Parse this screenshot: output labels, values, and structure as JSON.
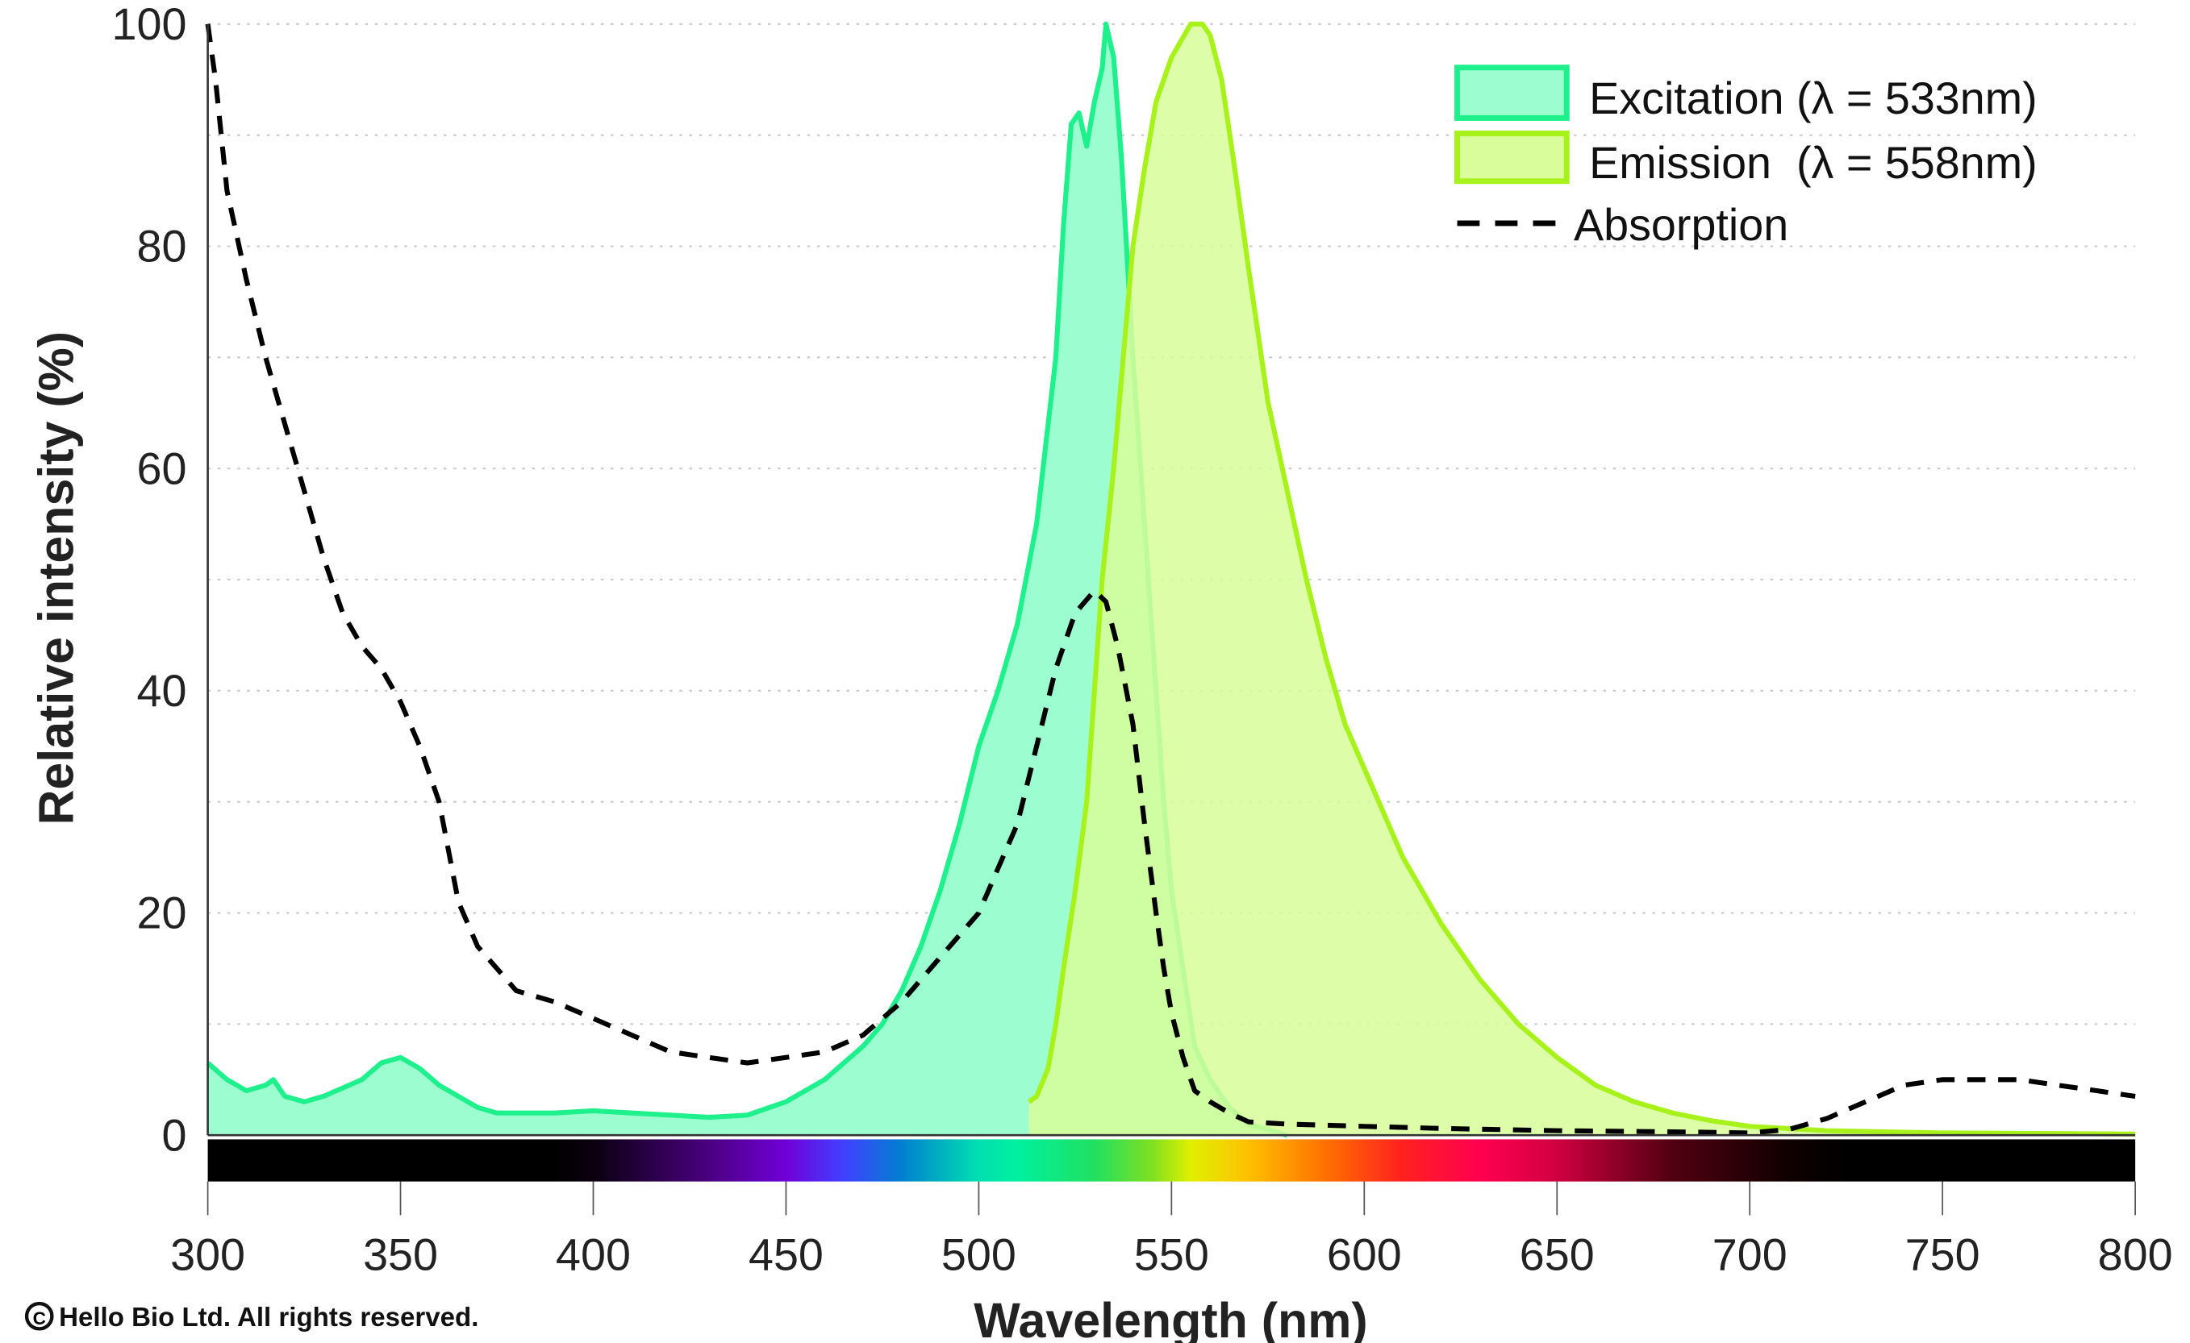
{
  "chart_data": {
    "type": "area",
    "xlabel": "Wavelength (nm)",
    "ylabel": "Relative intensity (%)",
    "xlim": [
      300,
      800
    ],
    "ylim": [
      0,
      100
    ],
    "xticks": [
      300,
      350,
      400,
      450,
      500,
      550,
      600,
      650,
      700,
      750,
      800
    ],
    "yticks": [
      0,
      20,
      40,
      60,
      80,
      100
    ],
    "grid": "horizontal dotted every 10",
    "legend_position": "top-right",
    "spectrum_bar": true,
    "series": [
      {
        "name": "Excitation (λ = 533nm)",
        "style": "filled",
        "color": "#1ef08c",
        "fill": "#9cfdd0",
        "x": [
          300,
          305,
          310,
          315,
          317,
          320,
          325,
          330,
          340,
          345,
          350,
          355,
          360,
          365,
          370,
          375,
          380,
          390,
          400,
          410,
          420,
          430,
          440,
          450,
          460,
          470,
          475,
          480,
          485,
          490,
          495,
          500,
          505,
          510,
          515,
          520,
          522,
          524,
          526,
          528,
          530,
          532,
          533,
          535,
          537,
          540,
          543,
          546,
          548,
          550,
          553,
          556,
          560,
          565,
          570,
          575,
          580
        ],
        "y": [
          6.5,
          5,
          4,
          4.5,
          5,
          3.5,
          3,
          3.5,
          5,
          6.5,
          7,
          6,
          4.5,
          3.5,
          2.5,
          2,
          2,
          2,
          2.2,
          2,
          1.8,
          1.6,
          1.8,
          3,
          5,
          8,
          10,
          13,
          17,
          22,
          28,
          35,
          40,
          46,
          55,
          70,
          82,
          91,
          92,
          89,
          93,
          96,
          100,
          97,
          88,
          70,
          55,
          40,
          30,
          22,
          15,
          8,
          5,
          2.5,
          1,
          0.5,
          0
        ]
      },
      {
        "name": "Emission  (λ = 558nm)",
        "style": "filled",
        "color": "#a6f21a",
        "fill": "#d8fd9a",
        "x": [
          513,
          515,
          518,
          520,
          522,
          525,
          528,
          530,
          532,
          535,
          538,
          540,
          543,
          546,
          550,
          555,
          558,
          560,
          563,
          566,
          570,
          575,
          580,
          585,
          590,
          595,
          600,
          610,
          620,
          630,
          640,
          650,
          660,
          670,
          680,
          690,
          700,
          720,
          750,
          800
        ],
        "y": [
          3,
          3.5,
          6,
          10,
          15,
          22,
          30,
          40,
          50,
          60,
          72,
          80,
          87,
          93,
          97,
          100,
          100,
          99,
          95,
          88,
          78,
          66,
          58,
          50,
          43,
          37,
          33,
          25,
          19,
          14,
          10,
          7,
          4.5,
          3,
          2,
          1.3,
          0.8,
          0.4,
          0.2,
          0.1
        ]
      },
      {
        "name": "Absorption",
        "style": "dashed",
        "color": "#000000",
        "x": [
          300,
          302,
          305,
          310,
          315,
          320,
          325,
          330,
          335,
          340,
          345,
          350,
          355,
          360,
          365,
          370,
          380,
          390,
          400,
          410,
          420,
          430,
          440,
          450,
          460,
          470,
          480,
          490,
          500,
          505,
          510,
          515,
          520,
          525,
          530,
          533,
          536,
          540,
          543,
          546,
          548,
          550,
          553,
          556,
          560,
          565,
          570,
          580,
          600,
          620,
          650,
          680,
          700,
          710,
          720,
          730,
          740,
          750,
          760,
          770,
          780,
          790,
          800
        ],
        "y": [
          100,
          95,
          85,
          77,
          70,
          64,
          58,
          52,
          47,
          44,
          42,
          39,
          35,
          30,
          21,
          17,
          13,
          12,
          10.5,
          9,
          7.5,
          7,
          6.5,
          7,
          7.5,
          9,
          12,
          16,
          20,
          24,
          28,
          35,
          42,
          47,
          49,
          48,
          44,
          37,
          28,
          20,
          15,
          11,
          7,
          4,
          3,
          2,
          1.2,
          1,
          0.8,
          0.6,
          0.4,
          0.3,
          0.2,
          0.5,
          1.5,
          3,
          4.5,
          5,
          5,
          5,
          4.5,
          4,
          3.5
        ]
      }
    ]
  },
  "copyright": "Hello Bio Ltd. All rights reserved.",
  "copyright_symbol": "©"
}
